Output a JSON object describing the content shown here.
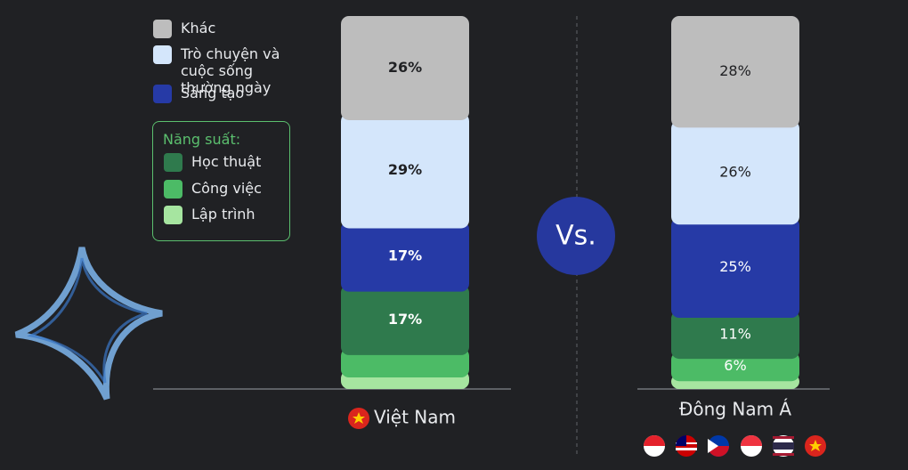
{
  "chart_data": {
    "type": "stacked-bar",
    "categories": [
      "Việt Nam",
      "Đông Nam Á"
    ],
    "legend_group_title": "Năng suất:",
    "series": [
      {
        "name": "Khác",
        "color": "#bdbdbd",
        "values": [
          26,
          28
        ],
        "value_labels": [
          "26%",
          "28%"
        ]
      },
      {
        "name": "Trò chuyện và cuộc sống thường ngày",
        "color": "#d4e6fb",
        "values": [
          29,
          26
        ],
        "value_labels": [
          "29%",
          "26%"
        ]
      },
      {
        "name": "Sáng tạo",
        "color": "#263aa6",
        "values": [
          17,
          25
        ],
        "value_labels": [
          "17%",
          "25%"
        ]
      },
      {
        "name": "Học thuật",
        "color": "#2f7a4d",
        "values": [
          17,
          11
        ],
        "value_labels": [
          "17%",
          "11%"
        ]
      },
      {
        "name": "Công việc",
        "color": "#4cbb66",
        "values": [
          6,
          6
        ],
        "value_labels": [
          null,
          "6%"
        ]
      },
      {
        "name": "Lập trình",
        "color": "#a6e5a0",
        "values": [
          5,
          4
        ],
        "value_labels": [
          null,
          null
        ]
      }
    ]
  }
}
